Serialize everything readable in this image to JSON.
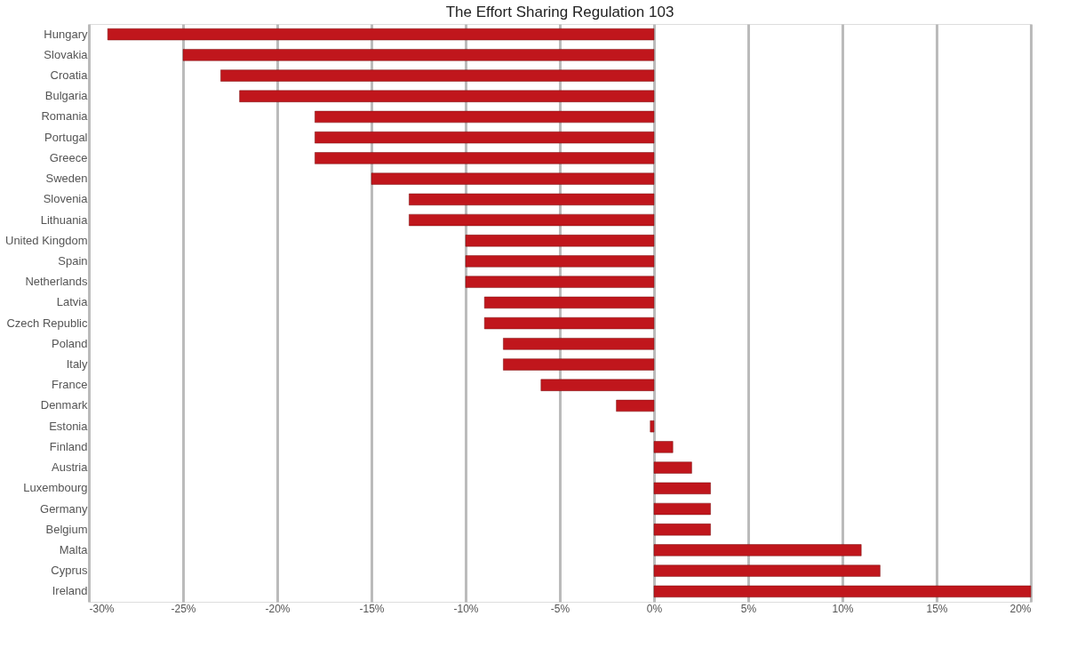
{
  "chart_data": {
    "type": "bar",
    "orientation": "horizontal",
    "title": "The Effort Sharing Regulation 103",
    "categories": [
      "Hungary",
      "Slovakia",
      "Croatia",
      "Bulgaria",
      "Romania",
      "Portugal",
      "Greece",
      "Sweden",
      "Slovenia",
      "Lithuania",
      "United Kingdom",
      "Spain",
      "Netherlands",
      "Latvia",
      "Czech Republic",
      "Poland",
      "Italy",
      "France",
      "Denmark",
      "Estonia",
      "Finland",
      "Austria",
      "Luxembourg",
      "Germany",
      "Belgium",
      "Malta",
      "Cyprus",
      "Ireland"
    ],
    "values": [
      -29,
      -25,
      -23,
      -22,
      -18,
      -18,
      -18,
      -15,
      -13,
      -13,
      -10,
      -10,
      -10,
      -9,
      -9,
      -8,
      -8,
      -6,
      -2,
      -0.2,
      1,
      2,
      3,
      3,
      3,
      11,
      12,
      20
    ],
    "color": "#c0161c",
    "xlim": [
      -30,
      20
    ],
    "xticks": [
      {
        "value": -30,
        "label": "-30%"
      },
      {
        "value": -25,
        "label": "-25%"
      },
      {
        "value": -20,
        "label": "-20%"
      },
      {
        "value": -15,
        "label": "-15%"
      },
      {
        "value": -10,
        "label": "-10%"
      },
      {
        "value": -5,
        "label": "-5%"
      },
      {
        "value": 0,
        "label": "0%"
      },
      {
        "value": 5,
        "label": "5%"
      },
      {
        "value": 10,
        "label": "10%"
      },
      {
        "value": 15,
        "label": "15%"
      },
      {
        "value": 20,
        "label": "20%"
      }
    ],
    "grid": "x"
  }
}
